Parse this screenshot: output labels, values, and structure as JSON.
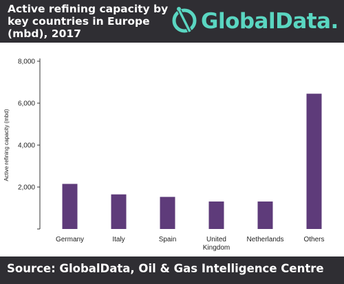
{
  "header": {
    "title": "Active refining capacity by key countries in Europe (mbd), 2017",
    "logo_text": "GlobalData.",
    "logo_icon": "globaldata-logo-icon"
  },
  "footer": {
    "source": "Source: GlobalData, Oil & Gas Intelligence Centre"
  },
  "colors": {
    "header_bg": "#2f2e33",
    "bar": "#5e3b7a",
    "accent": "#5ad6c1"
  },
  "chart_data": {
    "type": "bar",
    "title": "Active refining capacity by key countries in Europe (mbd), 2017",
    "ylabel": "Active refining capacity (mbd)",
    "xlabel": "",
    "categories": [
      [
        "Germany"
      ],
      [
        "Italy"
      ],
      [
        "Spain"
      ],
      [
        "United",
        "Kingdom"
      ],
      [
        "Netherlands"
      ],
      [
        "Others"
      ]
    ],
    "values": [
      2150,
      1650,
      1530,
      1310,
      1310,
      6450
    ],
    "ylim": [
      0,
      8000
    ],
    "yticks": [
      0,
      2000,
      4000,
      6000,
      8000
    ],
    "ytick_labels": [
      "",
      "2,000",
      "4,000",
      "6,000",
      "8,000"
    ],
    "grid": false,
    "legend": "none"
  }
}
